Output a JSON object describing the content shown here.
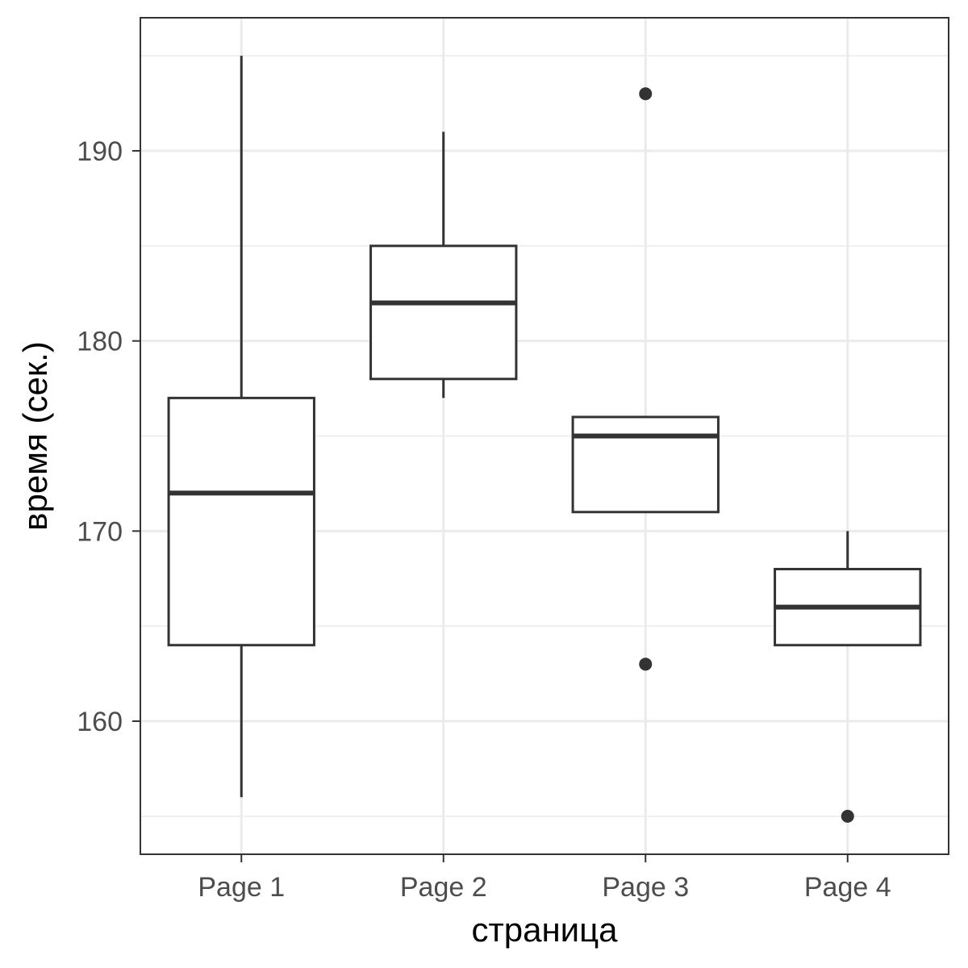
{
  "chart_data": {
    "type": "boxplot",
    "xlabel": "страница",
    "ylabel": "время (сек.)",
    "ylim": [
      153,
      197
    ],
    "y_ticks": [
      160,
      170,
      180,
      190
    ],
    "y_tick_labels": [
      "160",
      "170",
      "180",
      "190"
    ],
    "y_minor_ticks": [
      155,
      165,
      175,
      185,
      195
    ],
    "grid": true,
    "categories": [
      "Page 1",
      "Page 2",
      "Page 3",
      "Page 4"
    ],
    "boxes": [
      {
        "category": "Page 1",
        "whisker_low": 156,
        "q1": 164,
        "median": 172,
        "q3": 177,
        "whisker_high": 195,
        "outliers": []
      },
      {
        "category": "Page 2",
        "whisker_low": 177,
        "q1": 178,
        "median": 182,
        "q3": 185,
        "whisker_high": 191,
        "outliers": []
      },
      {
        "category": "Page 3",
        "whisker_low": 171,
        "q1": 171,
        "median": 175,
        "q3": 176,
        "whisker_high": 176,
        "outliers": [
          193,
          163
        ]
      },
      {
        "category": "Page 4",
        "whisker_low": 164,
        "q1": 164,
        "median": 166,
        "q3": 168,
        "whisker_high": 170,
        "outliers": [
          155
        ]
      }
    ],
    "colors": {
      "grid": "#ebebeb",
      "box": "#333333",
      "panel_border": "#333333"
    }
  }
}
